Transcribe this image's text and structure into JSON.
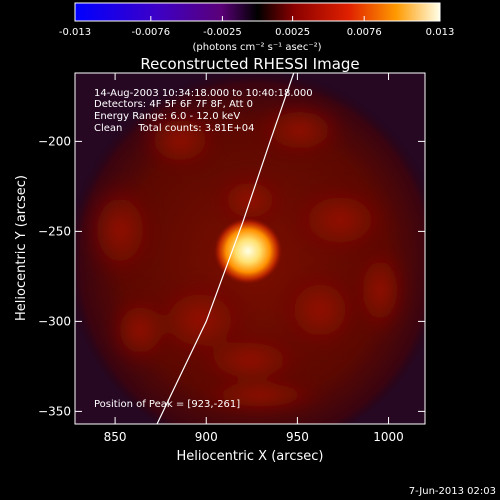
{
  "colorbar": {
    "tick_labels": [
      "-0.013",
      "-0.0076",
      "-0.0025",
      "0.0025",
      "0.0076",
      "0.013"
    ],
    "unit_label": "(photons cm⁻² s⁻¹ asec⁻²)",
    "range": [
      -0.013,
      0.013
    ]
  },
  "chart_data": {
    "type": "heatmap",
    "title": "Reconstructed RHESSI Image",
    "xlabel": "Heliocentric X (arcsec)",
    "ylabel": "Heliocentric Y (arcsec)",
    "xlim": [
      828,
      1020
    ],
    "ylim": [
      -357,
      -162
    ],
    "x_ticks": [
      {
        "value": 850,
        "label": "850"
      },
      {
        "value": 900,
        "label": "900"
      },
      {
        "value": 950,
        "label": "950"
      },
      {
        "value": 1000,
        "label": "1000"
      }
    ],
    "y_ticks": [
      {
        "value": -200,
        "label": "−200"
      },
      {
        "value": -250,
        "label": "−250"
      },
      {
        "value": -300,
        "label": "−300"
      },
      {
        "value": -350,
        "label": "−350"
      }
    ],
    "colormap": "hot",
    "annotations": [
      "14-Aug-2003 10:34:18.000 to 10:40:18.000",
      "Detectors: 4F 5F 6F 7F 8F, Att 0",
      "Energy Range: 6.0 - 12.0 keV",
      "Clean     Total counts: 3.81E+04"
    ],
    "peak": {
      "x": 923,
      "y": -261
    },
    "peak_label": "Position of Peak = [923,-261]",
    "limb_line": [
      [
        873,
        -357
      ],
      [
        900,
        -300
      ],
      [
        920,
        -245
      ],
      [
        935,
        -200
      ],
      [
        948,
        -162
      ]
    ]
  },
  "footer": {
    "timestamp": "7-Jun-2013 02:03"
  }
}
